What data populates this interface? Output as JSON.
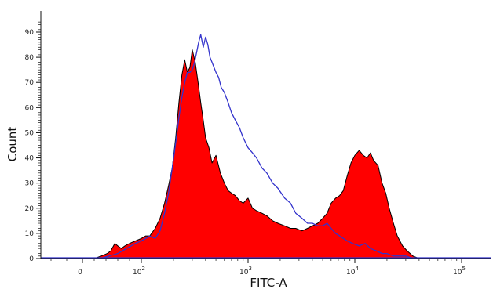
{
  "chart_data": {
    "type": "area",
    "title": "",
    "xlabel": "FITC-A",
    "ylabel": "Count",
    "x_scale": "biexponential",
    "xlim": [
      -1000,
      250000
    ],
    "ylim": [
      0,
      95
    ],
    "grid": false,
    "legend": "none",
    "y_ticks": [
      0,
      10,
      20,
      30,
      40,
      50,
      60,
      70,
      80,
      90
    ],
    "x_tick_labels": [
      {
        "value": 0,
        "label": "0"
      },
      {
        "value": 100,
        "label": "10",
        "exp": "2"
      },
      {
        "value": 1000,
        "label": "10",
        "exp": "3"
      },
      {
        "value": 10000,
        "label": "10",
        "exp": "4"
      },
      {
        "value": 100000,
        "label": "10",
        "exp": "5"
      }
    ],
    "series": [
      {
        "kind": "filled",
        "color": "#ff0000",
        "outline": "#000000",
        "x": [
          20,
          32,
          42,
          48,
          55,
          60,
          66,
          72,
          80,
          90,
          100,
          110,
          120,
          135,
          150,
          165,
          180,
          195,
          210,
          225,
          240,
          255,
          270,
          285,
          300,
          320,
          340,
          360,
          380,
          400,
          430,
          460,
          500,
          550,
          600,
          650,
          700,
          760,
          830,
          900,
          1000,
          1100,
          1200,
          1350,
          1500,
          1700,
          1900,
          2200,
          2500,
          2800,
          3200,
          3600,
          4000,
          4500,
          5000,
          5500,
          6000,
          6600,
          7200,
          7800,
          8500,
          9200,
          10000,
          11000,
          12000,
          13000,
          14000,
          15000,
          16500,
          18000,
          19500,
          21000,
          23000,
          25000,
          28000,
          31000,
          35000,
          40000,
          45000,
          50000
        ],
        "y": [
          0,
          1,
          2,
          3,
          6,
          5,
          4,
          5,
          6,
          7,
          8,
          9,
          9,
          12,
          16,
          22,
          29,
          36,
          48,
          62,
          73,
          79,
          74,
          76,
          83,
          78,
          70,
          62,
          55,
          48,
          44,
          38,
          41,
          34,
          30,
          27,
          26,
          25,
          23,
          22,
          24,
          20,
          19,
          18,
          17,
          15,
          14,
          13,
          12,
          12,
          11,
          12,
          13,
          14,
          16,
          18,
          22,
          24,
          25,
          27,
          33,
          38,
          41,
          43,
          41,
          40,
          42,
          39,
          37,
          30,
          26,
          20,
          14,
          9,
          5,
          3,
          1,
          0,
          0,
          0
        ]
      },
      {
        "kind": "outline",
        "color": "#3333cc",
        "x": [
          30,
          45,
          60,
          75,
          90,
          100,
          110,
          120,
          135,
          150,
          165,
          180,
          195,
          210,
          225,
          240,
          255,
          270,
          285,
          300,
          315,
          330,
          345,
          360,
          380,
          400,
          420,
          440,
          460,
          480,
          500,
          530,
          560,
          600,
          650,
          700,
          760,
          830,
          900,
          1000,
          1100,
          1200,
          1350,
          1500,
          1700,
          1900,
          2200,
          2500,
          2800,
          3200,
          3600,
          4000,
          4500,
          5000,
          5500,
          6000,
          6600,
          7200,
          7800,
          8500,
          9500,
          11000,
          12500,
          14000,
          16000,
          18000,
          20000,
          23000,
          26000,
          30000,
          35000,
          40000
        ],
        "y": [
          0,
          1,
          2,
          4,
          6,
          7,
          8,
          9,
          8,
          11,
          18,
          26,
          36,
          46,
          56,
          64,
          70,
          74,
          74,
          75,
          78,
          82,
          86,
          89,
          84,
          88,
          85,
          80,
          78,
          76,
          74,
          72,
          68,
          66,
          62,
          58,
          55,
          52,
          48,
          44,
          42,
          40,
          36,
          34,
          30,
          28,
          24,
          22,
          18,
          16,
          14,
          14,
          13,
          13,
          14,
          12,
          10,
          9,
          8,
          7,
          6,
          5,
          6,
          4,
          3,
          2,
          2,
          1,
          1,
          1,
          0,
          0
        ]
      }
    ]
  }
}
